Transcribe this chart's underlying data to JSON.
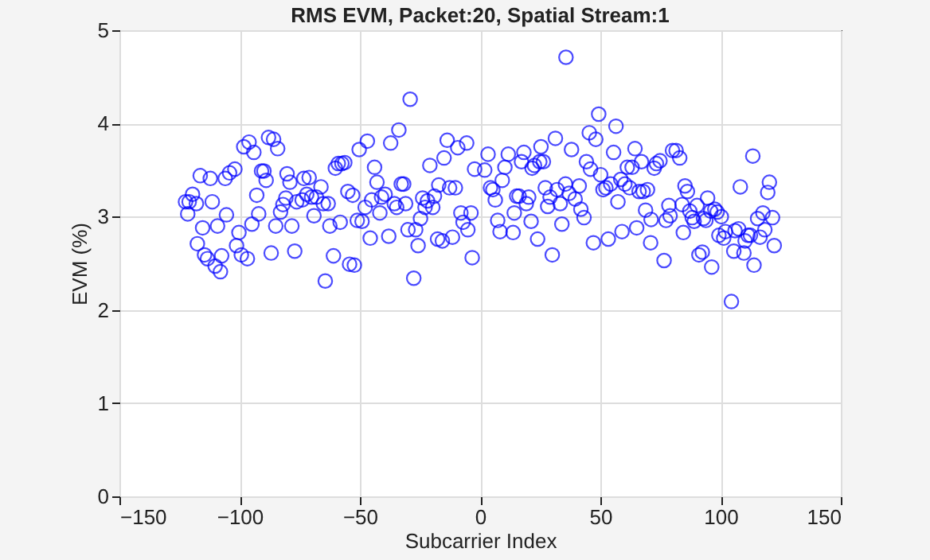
{
  "chart_data": {
    "type": "scatter",
    "title": "RMS EVM, Packet:20, Spatial Stream:1",
    "xlabel": "Subcarrier Index",
    "ylabel": "EVM (%)",
    "xlim": [
      -150,
      150
    ],
    "xticks": [
      -150,
      -100,
      -50,
      0,
      50,
      100,
      150
    ],
    "ylim": [
      0,
      5
    ],
    "yticks": [
      0,
      1,
      2,
      3,
      4,
      5
    ],
    "grid": true,
    "marker": "circle",
    "x": [
      -122.5,
      -121.6,
      -121,
      -119.6,
      -118,
      -117.6,
      -116.4,
      -115.4,
      -114.6,
      -113.4,
      -112.2,
      -111.4,
      -110.2,
      -109.2,
      -108,
      -107.5,
      -106,
      -105.5,
      -104.2,
      -102,
      -101.3,
      -100.3,
      -99.3,
      -98.3,
      -96.8,
      -96.1,
      -94.9,
      -94.1,
      -92.9,
      -92.1,
      -90.9,
      -89.9,
      -89,
      -88,
      -86.9,
      -85.9,
      -85,
      -84.2,
      -83,
      -82,
      -80.8,
      -80.3,
      -79.1,
      -78.3,
      -77.1,
      -76.3,
      -74,
      -73.3,
      -72.1,
      -71.1,
      -70.1,
      -69.1,
      -68.1,
      -66.2,
      -65.2,
      -64.4,
      -63.2,
      -62.5,
      -61,
      -60.2,
      -59,
      -58.2,
      -57.5,
      -56.3,
      -55,
      -54.3,
      -53,
      -52.3,
      -51.1,
      -50.3,
      -49.1,
      -47.8,
      -46.9,
      -45.7,
      -45.1,
      -43.9,
      -42.9,
      -41.7,
      -41,
      -39.5,
      -38,
      -37.2,
      -35.7,
      -34.7,
      -33.8,
      -32.8,
      -31.8,
      -31,
      -30,
      -29.1,
      -27.6,
      -26.8,
      -25.8,
      -24.8,
      -23.9,
      -22.9,
      -21.9,
      -20.9,
      -19.7,
      -19,
      -17.7,
      -17.2,
      -15.7,
      -15,
      -13.7,
      -12.7,
      -11.5,
      -10.3,
      -9.3,
      -8,
      -7.1,
      -5.6,
      -5.1,
      -3.8,
      -3.3,
      -2.3,
      1.9,
      3.3,
      4.3,
      5.3,
      6.3,
      7.3,
      8.3,
      9.2,
      10.3,
      11.7,
      13.7,
      14.2,
      15.2,
      16.2,
      17.2,
      18.2,
      19.2,
      20.2,
      21.2,
      21.6,
      22.6,
      23.9,
      24.8,
      25.3,
      26.3,
      27.1,
      28.1,
      29.1,
      30,
      31.3,
      32,
      33.3,
      34,
      35.7,
      35.5,
      37,
      38,
      39.5,
      41.2,
      41.9,
      43.2,
      44.2,
      45.4,
      45.9,
      47.1,
      48.1,
      49.3,
      50.1,
      51.1,
      52.3,
      53.3,
      54.3,
      55.5,
      56.5,
      57.3,
      58.5,
      59,
      60.2,
      61.2,
      62.2,
      63.2,
      64.4,
      65.1,
      66.1,
      67.1,
      67.8,
      68.8,
      69.6,
      70.9,
      71.1,
      72.4,
      73.3,
      74.8,
      76.5,
      77.3,
      78.5,
      79,
      80,
      81.5,
      83,
      84,
      84.5,
      85.2,
      86.2,
      87.2,
      88.2,
      89,
      90.2,
      91,
      92.4,
      92.9,
      93.9,
      94.6,
      95.9,
      96.3,
      97.6,
      98.6,
      99.3,
      100.3,
      101.3,
      102,
      104.5,
      105.5,
      106,
      107.5,
      108.2,
      109.7,
      110.2,
      111.4,
      112.4,
      113.4,
      113.9,
      115.4,
      116.4,
      117.6,
      118.4,
      119.6,
      120.3,
      121.6,
      122.3
    ],
    "series": [
      {
        "color": "#0000ff",
        "values": [
          3.16,
          3.03,
          3.16,
          3.24,
          3.14,
          2.71,
          3.44,
          2.88,
          2.59,
          2.55,
          3.41,
          3.16,
          2.47,
          2.9,
          2.41,
          2.58,
          3.41,
          3.02,
          3.47,
          3.51,
          2.69,
          2.83,
          2.59,
          3.75,
          2.55,
          3.8,
          2.92,
          3.69,
          3.23,
          3.03,
          3.49,
          3.49,
          3.39,
          3.85,
          2.61,
          3.83,
          2.9,
          3.73,
          3.05,
          3.13,
          3.2,
          3.46,
          3.37,
          2.9,
          2.63,
          3.16,
          3.18,
          3.41,
          3.24,
          3.42,
          3.21,
          3.01,
          3.21,
          3.32,
          3.14,
          2.31,
          3.14,
          2.9,
          2.58,
          3.52,
          3.57,
          2.94,
          3.57,
          3.58,
          3.27,
          2.49,
          3.23,
          2.48,
          2.96,
          3.72,
          2.95,
          3.1,
          3.81,
          2.77,
          3.18,
          3.53,
          3.37,
          3.04,
          3.21,
          3.24,
          2.79,
          3.79,
          3.14,
          3.1,
          3.93,
          3.35,
          3.35,
          3.14,
          2.86,
          4.26,
          2.34,
          2.86,
          2.69,
          2.98,
          3.2,
          3.1,
          3.17,
          3.55,
          3.1,
          3.22,
          2.76,
          3.34,
          2.74,
          3.63,
          3.82,
          3.31,
          2.78,
          3.31,
          3.74,
          3.04,
          2.94,
          3.79,
          2.86,
          3.04,
          2.56,
          3.51,
          3.5,
          3.67,
          3.31,
          3.29,
          3.18,
          2.96,
          2.84,
          3.39,
          3.53,
          3.67,
          2.83,
          3.04,
          3.22,
          3.22,
          3.59,
          3.69,
          3.14,
          3.21,
          2.95,
          3.52,
          3.55,
          2.76,
          3.59,
          3.75,
          3.59,
          3.31,
          3.11,
          3.21,
          2.59,
          3.84,
          3.29,
          3.14,
          2.92,
          4.71,
          3.35,
          3.25,
          3.72,
          3.19,
          3.33,
          3.08,
          2.99,
          3.59,
          3.9,
          3.51,
          2.72,
          3.83,
          4.1,
          3.45,
          3.29,
          3.31,
          2.76,
          3.35,
          3.69,
          3.97,
          3.16,
          3.4,
          2.84,
          3.35,
          3.53,
          3.31,
          3.53,
          3.73,
          2.88,
          3.27,
          3.59,
          3.27,
          3.07,
          3.29,
          2.72,
          2.97,
          3.52,
          3.57,
          3.6,
          2.53,
          2.96,
          3.12,
          3.01,
          3.71,
          3.71,
          3.63,
          3.13,
          2.83,
          3.33,
          3.27,
          3.06,
          2.99,
          2.95,
          3.12,
          2.59,
          2.62,
          2.98,
          2.96,
          3.2,
          3.06,
          2.46,
          3.08,
          3.05,
          2.8,
          3.0,
          2.77,
          2.84,
          2.09,
          2.63,
          2.85,
          2.87,
          3.32,
          2.61,
          2.74,
          2.8,
          2.8,
          3.65,
          2.48,
          2.98,
          2.78,
          3.04,
          2.86,
          3.26,
          3.37,
          2.99,
          2.69
        ]
      }
    ]
  }
}
